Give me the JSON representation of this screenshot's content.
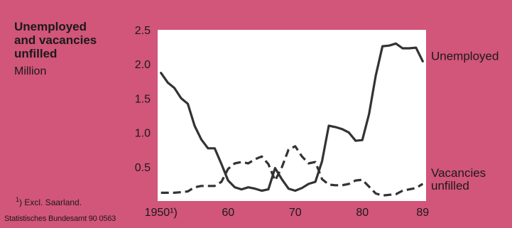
{
  "chart_data": {
    "type": "line",
    "title_lines": [
      "Unemployed",
      "and vacancies",
      "unfilled"
    ],
    "unit": "Million",
    "x_tick_labels": [
      "1950¹)",
      "60",
      "70",
      "80",
      "89"
    ],
    "x_ticks": [
      1950,
      1960,
      1970,
      1980,
      1989
    ],
    "y_tick_labels": [
      "2.5",
      "2.0",
      "1.5",
      "1.0",
      "0.5"
    ],
    "y_ticks": [
      2.5,
      2.0,
      1.5,
      1.0,
      0.5
    ],
    "xlim": [
      1949.5,
      1989.5
    ],
    "ylim": [
      0,
      2.5
    ],
    "grid": false,
    "series": [
      {
        "name": "Unemployed",
        "label_lines": [
          "Unemployed"
        ],
        "style": "solid",
        "color": "#333333",
        "x": [
          1950,
          1951,
          1952,
          1953,
          1954,
          1955,
          1956,
          1957,
          1958,
          1959,
          1960,
          1961,
          1962,
          1963,
          1964,
          1965,
          1966,
          1967,
          1968,
          1969,
          1970,
          1971,
          1972,
          1973,
          1974,
          1975,
          1976,
          1977,
          1978,
          1979,
          1980,
          1981,
          1982,
          1983,
          1984,
          1985,
          1986,
          1987,
          1988,
          1989
        ],
        "y": [
          1.87,
          1.73,
          1.65,
          1.5,
          1.42,
          1.1,
          0.9,
          0.77,
          0.77,
          0.54,
          0.3,
          0.2,
          0.17,
          0.2,
          0.18,
          0.15,
          0.17,
          0.48,
          0.32,
          0.18,
          0.15,
          0.19,
          0.25,
          0.28,
          0.58,
          1.1,
          1.08,
          1.05,
          1.0,
          0.88,
          0.89,
          1.27,
          1.83,
          2.26,
          2.27,
          2.3,
          2.23,
          2.23,
          2.24,
          2.04
        ]
      },
      {
        "name": "Vacancies unfilled",
        "label_lines": [
          "Vacancies",
          "unfilled"
        ],
        "style": "dashed",
        "color": "#333333",
        "x": [
          1950,
          1951,
          1952,
          1953,
          1954,
          1955,
          1956,
          1957,
          1958,
          1959,
          1960,
          1961,
          1962,
          1963,
          1964,
          1965,
          1966,
          1967,
          1968,
          1969,
          1970,
          1971,
          1972,
          1973,
          1974,
          1975,
          1976,
          1977,
          1978,
          1979,
          1980,
          1981,
          1982,
          1983,
          1984,
          1985,
          1986,
          1987,
          1988,
          1989
        ],
        "y": [
          0.12,
          0.12,
          0.12,
          0.13,
          0.14,
          0.2,
          0.22,
          0.22,
          0.22,
          0.28,
          0.47,
          0.55,
          0.57,
          0.55,
          0.61,
          0.65,
          0.54,
          0.3,
          0.49,
          0.75,
          0.8,
          0.65,
          0.55,
          0.57,
          0.32,
          0.24,
          0.23,
          0.23,
          0.25,
          0.3,
          0.31,
          0.21,
          0.11,
          0.08,
          0.09,
          0.1,
          0.15,
          0.17,
          0.19,
          0.25
        ]
      }
    ]
  },
  "footnote": {
    "marker": "1",
    "text": ") Excl. Saarland."
  },
  "source": "Statistisches Bundesamt 90 0563"
}
